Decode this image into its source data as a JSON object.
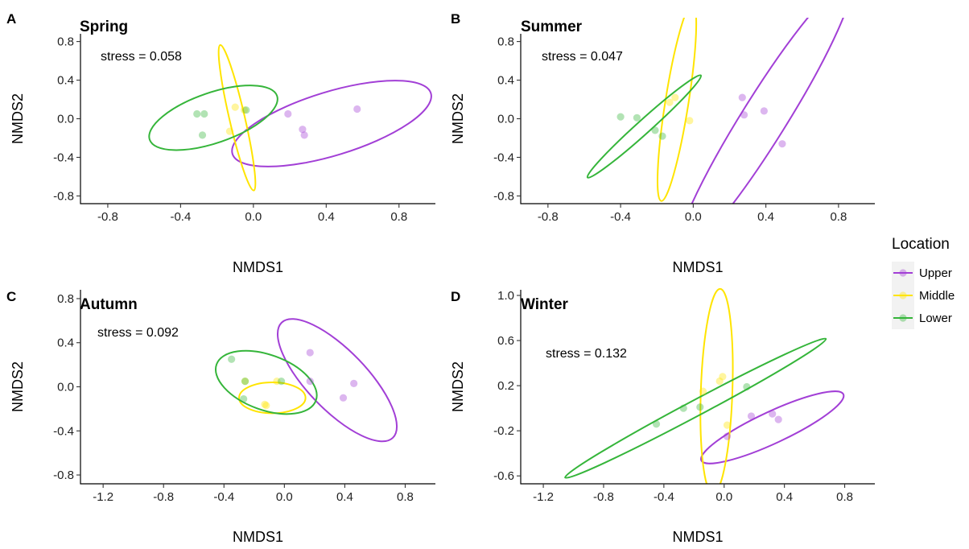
{
  "legend": {
    "title": "Location",
    "entries": [
      {
        "name": "Upper",
        "color": "#a23fd6"
      },
      {
        "name": "Middle",
        "color": "#ffe400"
      },
      {
        "name": "Lower",
        "color": "#35b53a"
      }
    ],
    "placement": "right"
  },
  "chart_data": [
    {
      "type": "scatter",
      "panel": "A",
      "title": "Spring",
      "annotation": "stress = 0.058",
      "xlabel": "NMDS1",
      "ylabel": "NMDS2",
      "xlim": [
        -0.95,
        1.0
      ],
      "ylim": [
        -0.88,
        0.88
      ],
      "xticks": [
        -0.8,
        -0.4,
        0.0,
        0.4,
        0.8
      ],
      "yticks": [
        -0.8,
        -0.4,
        0.0,
        0.4,
        0.8
      ],
      "tick_labels_x": [
        "-0.8",
        "-0.4",
        "0.0",
        "0.4",
        "0.8"
      ],
      "tick_labels_y": [
        "-0.8",
        "-0.4",
        "0.0",
        "0.4",
        "0.8"
      ],
      "grid": false,
      "series": [
        {
          "name": "Upper",
          "points": [
            [
              0.19,
              0.05
            ],
            [
              0.27,
              -0.11
            ],
            [
              0.28,
              -0.17
            ],
            [
              0.57,
              0.1
            ]
          ],
          "ellipse": {
            "cx": 0.43,
            "cy": -0.05,
            "rx": 0.57,
            "ry": 0.33,
            "angle": 17
          }
        },
        {
          "name": "Middle",
          "points": [
            [
              -0.1,
              0.12
            ],
            [
              -0.05,
              0.09
            ],
            [
              -0.13,
              -0.13
            ]
          ],
          "ellipse": {
            "cx": -0.09,
            "cy": 0.01,
            "rx": 0.41,
            "ry": 0.08,
            "angle": -77
          }
        },
        {
          "name": "Lower",
          "points": [
            [
              -0.31,
              0.05
            ],
            [
              -0.27,
              0.05
            ],
            [
              -0.28,
              -0.17
            ],
            [
              -0.04,
              0.09
            ]
          ],
          "ellipse": {
            "cx": -0.22,
            "cy": 0.01,
            "rx": 0.37,
            "ry": 0.26,
            "angle": 19
          }
        }
      ]
    },
    {
      "type": "scatter",
      "panel": "B",
      "title": "Summer",
      "annotation": "stress = 0.047",
      "xlabel": "NMDS1",
      "ylabel": "NMDS2",
      "xlim": [
        -0.95,
        1.0
      ],
      "ylim": [
        -0.88,
        0.88
      ],
      "xticks": [
        -0.8,
        -0.4,
        0.0,
        0.4,
        0.8
      ],
      "yticks": [
        -0.8,
        -0.4,
        0.0,
        0.4,
        0.8
      ],
      "tick_labels_x": [
        "-0.8",
        "-0.4",
        "0.0",
        "0.4",
        "0.8"
      ],
      "tick_labels_y": [
        "-0.8",
        "-0.4",
        "0.0",
        "0.4",
        "0.8"
      ],
      "grid": false,
      "series": [
        {
          "name": "Upper",
          "points": [
            [
              0.27,
              0.22
            ],
            [
              0.28,
              0.04
            ],
            [
              0.39,
              0.08
            ],
            [
              0.49,
              -0.26
            ]
          ],
          "ellipse": {
            "cx": 0.39,
            "cy": 0.0,
            "rx": 0.89,
            "ry": 0.23,
            "angle": 58
          }
        },
        {
          "name": "Middle",
          "points": [
            [
              -0.13,
              0.17
            ],
            [
              -0.1,
              0.22
            ],
            [
              -0.02,
              -0.02
            ]
          ],
          "ellipse": {
            "cx": -0.09,
            "cy": 0.17,
            "rx": 0.55,
            "ry": 0.12,
            "angle": 81
          }
        },
        {
          "name": "Lower",
          "points": [
            [
              -0.4,
              0.02
            ],
            [
              -0.31,
              0.01
            ],
            [
              -0.21,
              -0.12
            ],
            [
              -0.17,
              -0.18
            ]
          ],
          "ellipse": {
            "cx": -0.27,
            "cy": -0.08,
            "rx": 0.42,
            "ry": 0.07,
            "angle": 42
          }
        }
      ]
    },
    {
      "type": "scatter",
      "panel": "C",
      "title": "Autumn",
      "annotation": "stress = 0.092",
      "xlabel": "NMDS1",
      "ylabel": "NMDS2",
      "xlim": [
        -1.35,
        1.0
      ],
      "ylim": [
        -0.88,
        0.88
      ],
      "xticks": [
        -1.2,
        -0.8,
        -0.4,
        0.0,
        0.4,
        0.8
      ],
      "yticks": [
        -0.8,
        -0.4,
        0.0,
        0.4,
        0.8
      ],
      "tick_labels_x": [
        "-1.2",
        "-0.8",
        "-0.4",
        "0.0",
        "0.4",
        "0.8"
      ],
      "tick_labels_y": [
        "-0.8",
        "-0.4",
        "0.0",
        "0.4",
        "0.8"
      ],
      "grid": false,
      "series": [
        {
          "name": "Upper",
          "points": [
            [
              0.17,
              0.31
            ],
            [
              0.17,
              0.05
            ],
            [
              0.39,
              -0.1
            ],
            [
              0.46,
              0.03
            ]
          ],
          "ellipse": {
            "cx": 0.35,
            "cy": 0.06,
            "rx": 0.53,
            "ry": 0.27,
            "angle": -46
          }
        },
        {
          "name": "Middle",
          "points": [
            [
              -0.13,
              -0.16
            ],
            [
              -0.05,
              0.05
            ],
            [
              -0.12,
              -0.17
            ],
            [
              -0.26,
              0.05
            ]
          ],
          "ellipse": {
            "cx": -0.08,
            "cy": -0.1,
            "rx": 0.22,
            "ry": 0.14,
            "angle": 0
          }
        },
        {
          "name": "Lower",
          "points": [
            [
              -0.35,
              0.25
            ],
            [
              -0.27,
              -0.11
            ],
            [
              -0.26,
              0.05
            ],
            [
              -0.02,
              0.05
            ]
          ],
          "ellipse": {
            "cx": -0.12,
            "cy": 0.04,
            "rx": 0.35,
            "ry": 0.25,
            "angle": -20
          }
        }
      ]
    },
    {
      "type": "scatter",
      "panel": "D",
      "title": "Winter",
      "annotation": "stress = 0.132",
      "xlabel": "NMDS1",
      "ylabel": "NMDS2",
      "xlim": [
        -1.35,
        1.0
      ],
      "ylim": [
        -0.67,
        1.05
      ],
      "xticks": [
        -1.2,
        -0.8,
        -0.4,
        0.0,
        0.4,
        0.8
      ],
      "yticks": [
        -0.6,
        -0.2,
        0.2,
        0.6,
        1.0
      ],
      "tick_labels_x": [
        "-1.2",
        "-0.8",
        "-0.4",
        "0.0",
        "0.4",
        "0.8"
      ],
      "tick_labels_y": [
        "-0.6",
        "-0.2",
        "0.2",
        "0.6",
        "1.0"
      ],
      "grid": false,
      "series": [
        {
          "name": "Upper",
          "points": [
            [
              0.18,
              -0.07
            ],
            [
              0.32,
              -0.05
            ],
            [
              0.36,
              -0.1
            ],
            [
              0.02,
              -0.25
            ]
          ],
          "ellipse": {
            "cx": 0.32,
            "cy": -0.17,
            "rx": 0.52,
            "ry": 0.14,
            "angle": 25
          }
        },
        {
          "name": "Middle",
          "points": [
            [
              -0.14,
              0.15
            ],
            [
              -0.01,
              0.28
            ],
            [
              -0.03,
              0.24
            ],
            [
              0.02,
              -0.15
            ]
          ],
          "ellipse": {
            "cx": -0.05,
            "cy": 0.15,
            "rx": 0.68,
            "ry": 0.14,
            "angle": 88
          }
        },
        {
          "name": "Lower",
          "points": [
            [
              -0.45,
              -0.14
            ],
            [
              -0.27,
              0.0
            ],
            [
              -0.16,
              0.01
            ],
            [
              0.15,
              0.19
            ]
          ],
          "ellipse": {
            "cx": -0.19,
            "cy": 0.0,
            "rx": 0.98,
            "ry": 0.07,
            "angle": 28
          }
        }
      ]
    }
  ]
}
